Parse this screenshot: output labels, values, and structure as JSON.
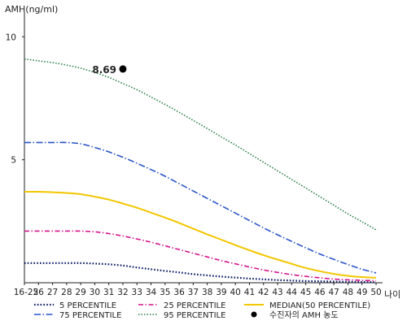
{
  "chart_data": {
    "type": "line",
    "title": "",
    "ylabel": "AMH(ng/ml)",
    "xlabel": "나이",
    "categories": [
      "16-25",
      "26",
      "27",
      "28",
      "29",
      "30",
      "31",
      "32",
      "33",
      "34",
      "35",
      "36",
      "37",
      "38",
      "39",
      "40",
      "41",
      "42",
      "43",
      "44",
      "45",
      "46",
      "47",
      "48",
      "49",
      "50"
    ],
    "yticks": [
      5,
      10
    ],
    "ylim": [
      0,
      11
    ],
    "grid": false,
    "legend_position": "bottom",
    "series": [
      {
        "name": "5 PERCENTILE",
        "color": "#0b1a66",
        "dash": "1.6 2.2",
        "width": 2.2,
        "values": [
          0.8,
          0.8,
          0.8,
          0.8,
          0.8,
          0.78,
          0.75,
          0.7,
          0.62,
          0.55,
          0.48,
          0.42,
          0.35,
          0.3,
          0.25,
          0.21,
          0.17,
          0.14,
          0.11,
          0.09,
          0.07,
          0.06,
          0.05,
          0.04,
          0.03,
          0.02
        ]
      },
      {
        "name": "25 PERCENTILE",
        "color": "#d4148c",
        "dash": "6 2.5 1.5 2.5",
        "width": 1.6,
        "values": [
          2.1,
          2.1,
          2.1,
          2.1,
          2.1,
          2.07,
          2.0,
          1.9,
          1.78,
          1.65,
          1.5,
          1.35,
          1.2,
          1.05,
          0.9,
          0.77,
          0.64,
          0.52,
          0.42,
          0.33,
          0.26,
          0.2,
          0.15,
          0.12,
          0.1,
          0.08
        ]
      },
      {
        "name": "MEDIAN(50 PERCENTILE)",
        "color": "#f2c600",
        "dash": "",
        "width": 2,
        "values": [
          3.7,
          3.7,
          3.68,
          3.65,
          3.6,
          3.5,
          3.38,
          3.22,
          3.05,
          2.85,
          2.65,
          2.43,
          2.2,
          1.97,
          1.75,
          1.53,
          1.32,
          1.12,
          0.94,
          0.77,
          0.6,
          0.47,
          0.36,
          0.28,
          0.23,
          0.2
        ]
      },
      {
        "name": "75 PERCENTILE",
        "color": "#2a55c8",
        "dash": "8 2.5 1.5 2.5",
        "width": 1.6,
        "values": [
          5.7,
          5.7,
          5.7,
          5.7,
          5.65,
          5.5,
          5.32,
          5.1,
          4.86,
          4.6,
          4.33,
          4.03,
          3.73,
          3.43,
          3.13,
          2.83,
          2.53,
          2.23,
          1.95,
          1.68,
          1.42,
          1.17,
          0.95,
          0.74,
          0.55,
          0.4
        ]
      },
      {
        "name": "95 PERCENTILE",
        "color": "#2e7d4a",
        "dash": "1.5 2",
        "width": 1.6,
        "values": [
          9.1,
          9.02,
          8.95,
          8.85,
          8.72,
          8.55,
          8.35,
          8.1,
          7.85,
          7.55,
          7.25,
          6.93,
          6.6,
          6.27,
          5.93,
          5.6,
          5.25,
          4.9,
          4.55,
          4.2,
          3.85,
          3.5,
          3.15,
          2.8,
          2.48,
          2.15
        ]
      }
    ],
    "marker": {
      "name": "수진자의 AMH 농도",
      "x": "32",
      "y": 8.69,
      "label": "8.69",
      "color": "#000000"
    },
    "legend_order": [
      "5 PERCENTILE",
      "25 PERCENTILE",
      "MEDIAN(50 PERCENTILE)",
      "75 PERCENTILE",
      "95 PERCENTILE",
      "수진자의 AMH 농도"
    ]
  }
}
